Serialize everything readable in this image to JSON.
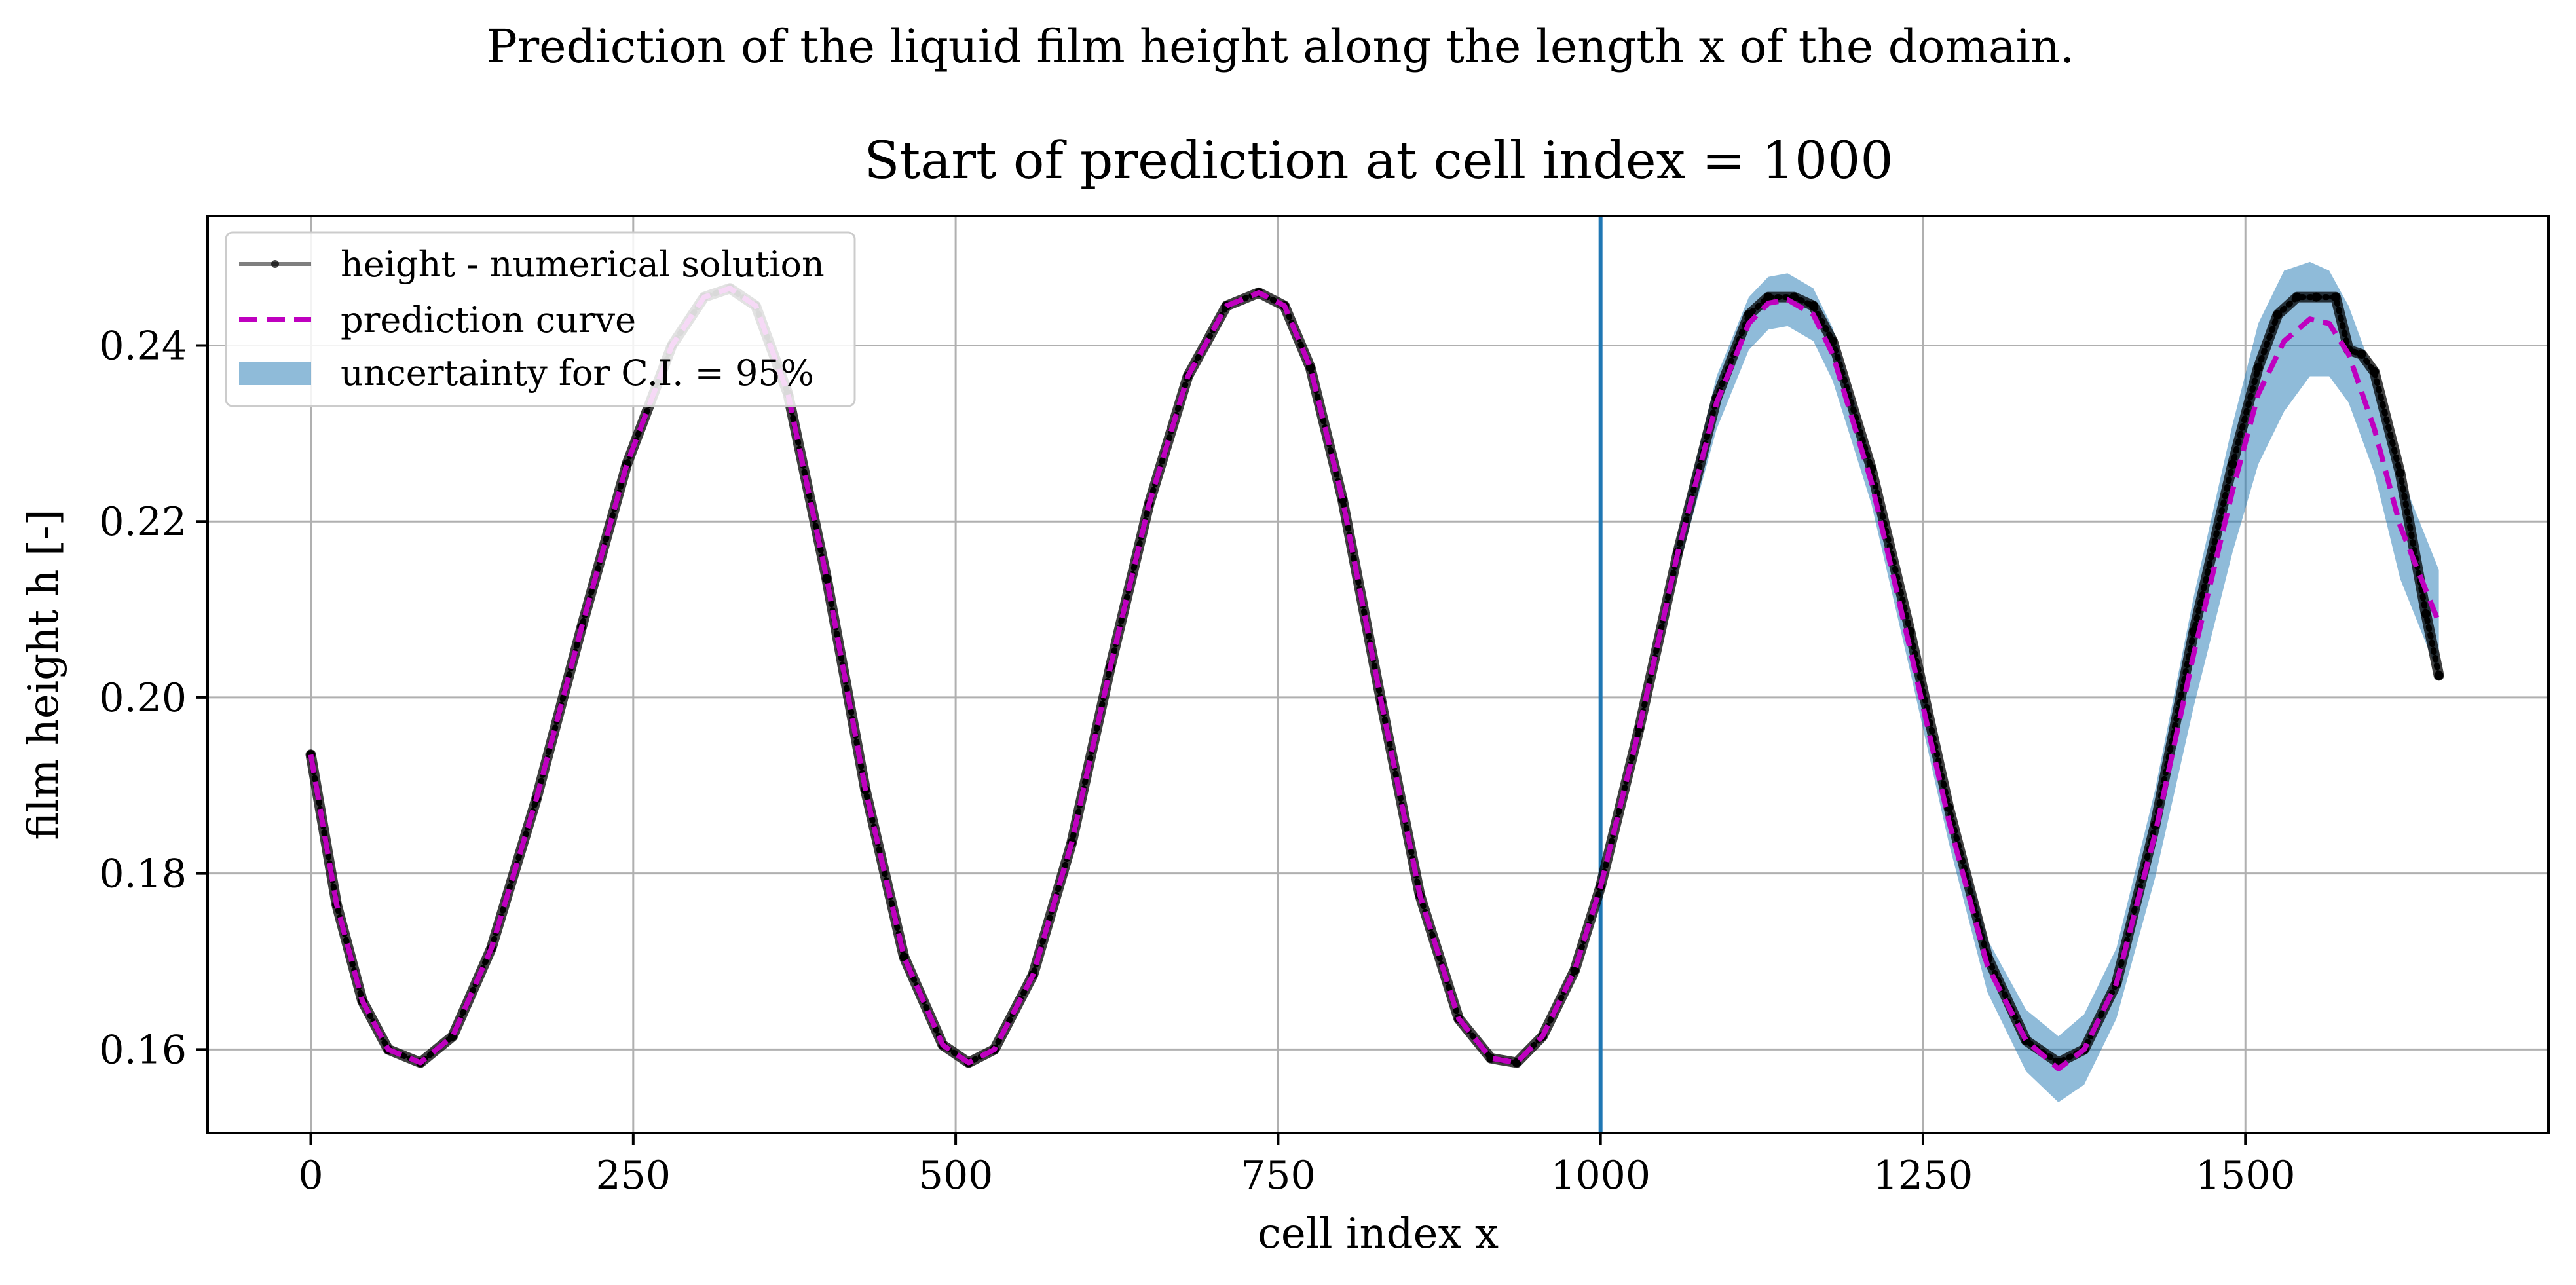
{
  "chart_data": {
    "type": "line",
    "suptitle": "Prediction of the liquid film height along the length x of the domain.",
    "title": "Start of prediction at cell index = 1000",
    "xlabel": "cell index x",
    "ylabel": "film height h [-]",
    "xlim": [
      -80,
      1735
    ],
    "ylim": [
      0.1505,
      0.2547
    ],
    "xticks": [
      0,
      250,
      500,
      750,
      1000,
      1250,
      1500
    ],
    "xtick_labels": [
      "0",
      "250",
      "500",
      "750",
      "1000",
      "1250",
      "1500"
    ],
    "yticks": [
      0.16,
      0.18,
      0.2,
      0.22,
      0.24
    ],
    "ytick_labels": [
      "0.16",
      "0.18",
      "0.20",
      "0.22",
      "0.24"
    ],
    "grid": true,
    "legend_position": "top-left",
    "vline": {
      "x": 1000,
      "color": "#1f77b4"
    },
    "series": [
      {
        "name": "height - numerical solution",
        "color": "#000000",
        "style": "solid-dots",
        "x": [
          0,
          20,
          40,
          60,
          85,
          110,
          140,
          175,
          210,
          245,
          280,
          305,
          325,
          345,
          370,
          400,
          430,
          460,
          490,
          510,
          530,
          560,
          590,
          620,
          650,
          680,
          710,
          735,
          755,
          775,
          800,
          830,
          860,
          890,
          915,
          935,
          955,
          980,
          1000,
          1030,
          1060,
          1090,
          1115,
          1130,
          1150,
          1165,
          1180,
          1210,
          1240,
          1270,
          1300,
          1330,
          1355,
          1375,
          1400,
          1430,
          1460,
          1490,
          1510,
          1525,
          1540,
          1555,
          1570,
          1580,
          1590,
          1600,
          1620,
          1640,
          1650
        ],
        "y": [
          0.1935,
          0.1765,
          0.1655,
          0.16,
          0.1585,
          0.1615,
          0.1715,
          0.1885,
          0.208,
          0.2265,
          0.24,
          0.2455,
          0.2465,
          0.2445,
          0.2345,
          0.2135,
          0.1895,
          0.1705,
          0.1605,
          0.1585,
          0.16,
          0.1685,
          0.1835,
          0.2035,
          0.222,
          0.2365,
          0.2445,
          0.246,
          0.2445,
          0.2375,
          0.2225,
          0.1995,
          0.1775,
          0.1635,
          0.159,
          0.1585,
          0.1615,
          0.169,
          0.1785,
          0.1965,
          0.2165,
          0.234,
          0.2435,
          0.2455,
          0.2455,
          0.2445,
          0.2405,
          0.226,
          0.2075,
          0.1875,
          0.1705,
          0.161,
          0.1585,
          0.16,
          0.1675,
          0.1855,
          0.2075,
          0.2265,
          0.2375,
          0.2435,
          0.2455,
          0.2455,
          0.2455,
          0.2395,
          0.239,
          0.237,
          0.2255,
          0.2095,
          0.2025
        ]
      },
      {
        "name": "prediction curve",
        "color": "#bf00bf",
        "style": "dashed",
        "x": [
          0,
          20,
          40,
          60,
          85,
          110,
          140,
          175,
          210,
          245,
          280,
          305,
          325,
          345,
          370,
          400,
          430,
          460,
          490,
          510,
          530,
          560,
          590,
          620,
          650,
          680,
          710,
          735,
          755,
          775,
          800,
          830,
          860,
          890,
          915,
          935,
          955,
          980,
          1000,
          1030,
          1060,
          1090,
          1115,
          1130,
          1145,
          1165,
          1180,
          1210,
          1240,
          1270,
          1300,
          1330,
          1355,
          1375,
          1400,
          1430,
          1460,
          1490,
          1510,
          1530,
          1550,
          1565,
          1580,
          1600,
          1620,
          1650
        ],
        "y": [
          0.1935,
          0.1765,
          0.1655,
          0.16,
          0.1585,
          0.1615,
          0.1715,
          0.1885,
          0.208,
          0.2265,
          0.24,
          0.2455,
          0.2465,
          0.2445,
          0.2345,
          0.2135,
          0.1895,
          0.1705,
          0.1605,
          0.1585,
          0.16,
          0.1685,
          0.1835,
          0.2035,
          0.222,
          0.2365,
          0.2445,
          0.246,
          0.2445,
          0.2375,
          0.2225,
          0.1995,
          0.1775,
          0.1635,
          0.159,
          0.1585,
          0.1615,
          0.169,
          0.1785,
          0.1965,
          0.2165,
          0.2335,
          0.2425,
          0.2448,
          0.2452,
          0.2435,
          0.239,
          0.2245,
          0.2055,
          0.186,
          0.1695,
          0.161,
          0.1578,
          0.16,
          0.1675,
          0.1845,
          0.205,
          0.2235,
          0.2345,
          0.2405,
          0.243,
          0.2425,
          0.239,
          0.2305,
          0.2195,
          0.2085
        ]
      }
    ],
    "band": {
      "name": "uncertainty for C.I. = 95%",
      "color": "#1f77b4",
      "opacity": 0.5,
      "x": [
        1000,
        1030,
        1060,
        1090,
        1115,
        1130,
        1145,
        1165,
        1180,
        1210,
        1240,
        1270,
        1300,
        1330,
        1355,
        1375,
        1400,
        1430,
        1460,
        1490,
        1510,
        1530,
        1550,
        1565,
        1580,
        1600,
        1620,
        1650
      ],
      "lower": [
        0.1785,
        0.1955,
        0.2145,
        0.2305,
        0.2395,
        0.2418,
        0.2422,
        0.2405,
        0.236,
        0.222,
        0.203,
        0.1835,
        0.1665,
        0.1575,
        0.154,
        0.156,
        0.1635,
        0.1795,
        0.199,
        0.2165,
        0.2265,
        0.2325,
        0.2365,
        0.2365,
        0.2335,
        0.2255,
        0.2135,
        0.2025
      ],
      "upper": [
        0.1785,
        0.1975,
        0.2185,
        0.2365,
        0.2455,
        0.2478,
        0.2482,
        0.2465,
        0.242,
        0.227,
        0.208,
        0.1885,
        0.1725,
        0.1645,
        0.1615,
        0.164,
        0.1715,
        0.1895,
        0.2115,
        0.231,
        0.2425,
        0.2485,
        0.2495,
        0.2485,
        0.2445,
        0.2365,
        0.2255,
        0.2145
      ]
    }
  }
}
